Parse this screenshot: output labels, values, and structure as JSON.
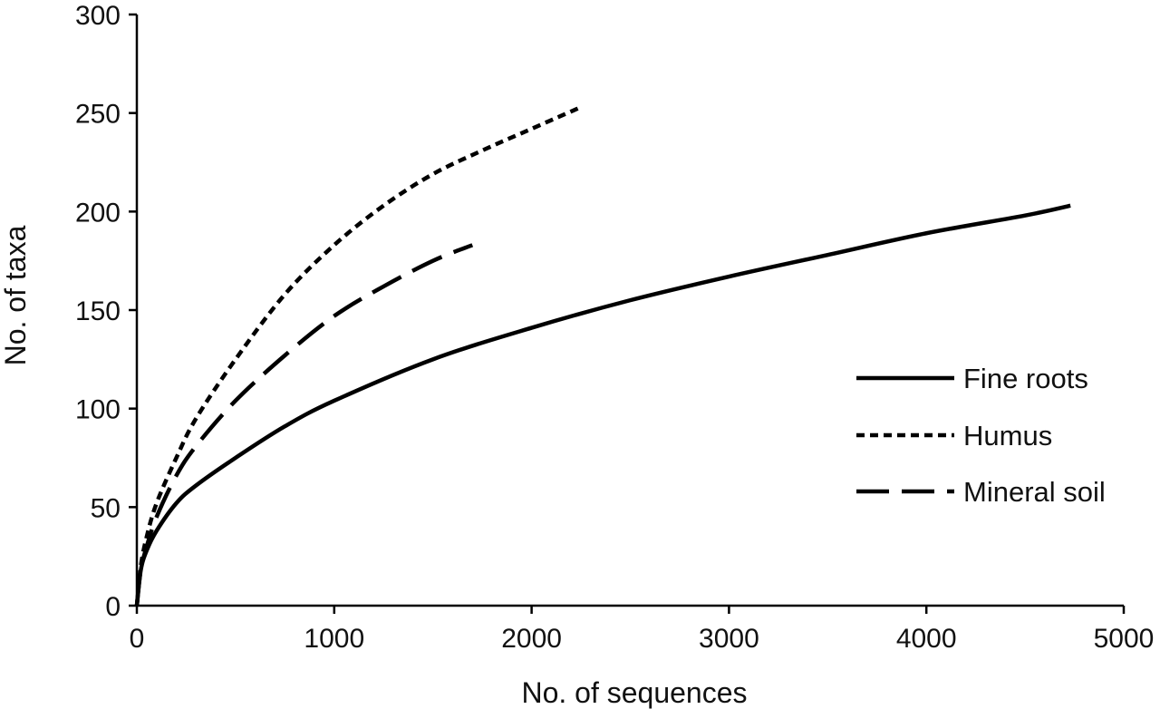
{
  "chart_data": {
    "type": "line",
    "title": "",
    "xlabel": "No. of sequences",
    "ylabel": "No. of taxa",
    "xlim": [
      0,
      5000
    ],
    "ylim": [
      0,
      300
    ],
    "xticks": [
      0,
      1000,
      2000,
      3000,
      4000,
      5000
    ],
    "yticks": [
      0,
      50,
      100,
      150,
      200,
      250,
      300
    ],
    "grid": false,
    "legend_position": "right",
    "series": [
      {
        "name": "Fine roots",
        "style": "solid",
        "color": "#000000",
        "x": [
          0,
          20,
          50,
          100,
          200,
          300,
          500,
          750,
          1000,
          1500,
          2000,
          2500,
          3000,
          3500,
          4000,
          4500,
          4730
        ],
        "y": [
          0,
          18,
          28,
          38,
          52,
          61,
          75,
          91,
          104,
          125,
          141,
          155,
          167,
          178,
          189,
          198,
          203
        ]
      },
      {
        "name": "Humus",
        "style": "dotted",
        "color": "#000000",
        "x": [
          0,
          20,
          50,
          100,
          200,
          300,
          500,
          750,
          1000,
          1250,
          1500,
          1750,
          2000,
          2250
        ],
        "y": [
          0,
          20,
          35,
          52,
          75,
          95,
          125,
          158,
          183,
          203,
          219,
          231,
          242,
          253
        ]
      },
      {
        "name": "Mineral soil",
        "style": "dashed",
        "color": "#000000",
        "x": [
          0,
          20,
          50,
          100,
          200,
          300,
          500,
          750,
          1000,
          1250,
          1500,
          1700
        ],
        "y": [
          0,
          18,
          30,
          45,
          66,
          81,
          104,
          127,
          147,
          162,
          175,
          183
        ]
      }
    ]
  }
}
